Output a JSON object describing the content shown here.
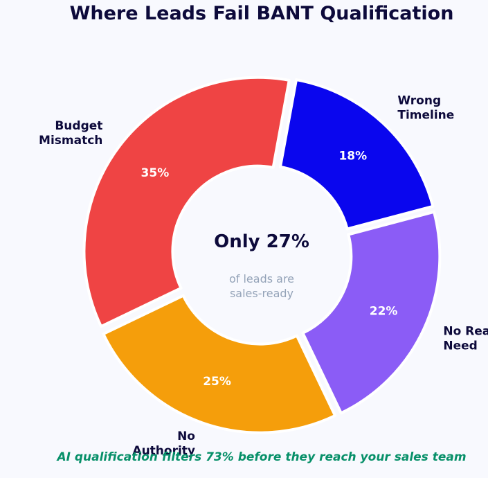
{
  "chart_data": {
    "type": "pie",
    "title": "Where Leads Fail BANT Qualification",
    "categories": [
      "No Real\nNeed",
      "No\nAuthority",
      "Budget\nMismatch",
      "Wrong\nTimeline"
    ],
    "values": [
      22,
      25,
      35,
      18
    ],
    "value_labels": [
      "22%",
      "25%",
      "35%",
      "18%"
    ],
    "colors": [
      "#8b5cf6",
      "#f59e0b",
      "#ef4444",
      "#0a06ee"
    ],
    "style": "donut, exploded wedges",
    "center": {
      "headline": "Only 27%",
      "subtext_line1": "of leads are",
      "subtext_line2": "sales-ready"
    },
    "footer": "AI qualification filters 73% before they reach your sales team"
  }
}
